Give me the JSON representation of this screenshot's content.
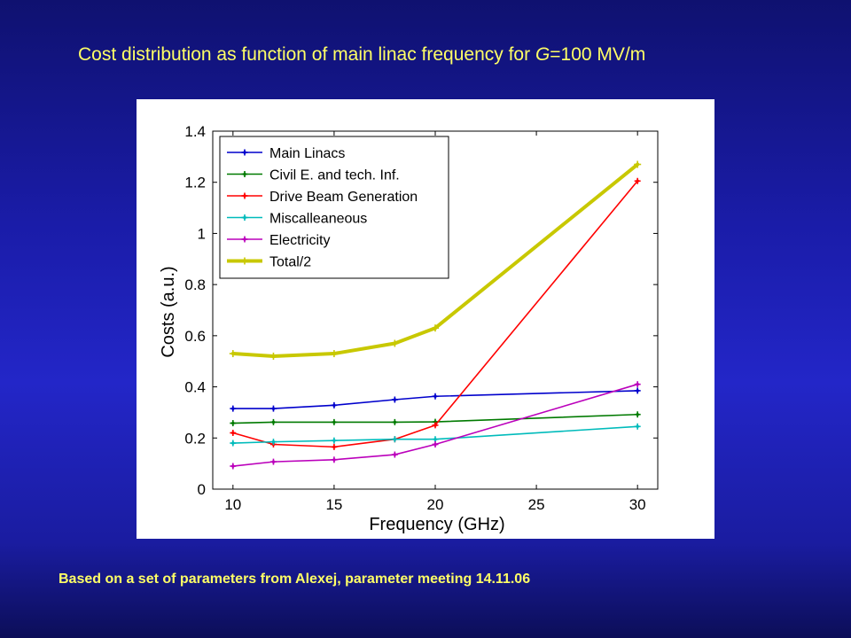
{
  "slide": {
    "title_prefix": "Cost distribution as function of main linac frequency for ",
    "title_var": "G",
    "title_suffix": "=100 MV/m",
    "footnote": "Based on a set of parameters from Alexej, parameter meeting 14.11.06"
  },
  "chart_data": {
    "type": "line",
    "title": "",
    "xlabel": "Frequency (GHz)",
    "ylabel": "Costs (a.u.)",
    "xlim": [
      9,
      31
    ],
    "ylim": [
      0,
      1.4
    ],
    "xticks": [
      10,
      15,
      20,
      25,
      30
    ],
    "yticks": [
      0,
      0.2,
      0.4,
      0.6,
      0.8,
      1,
      1.2,
      1.4
    ],
    "grid": false,
    "legend_position": "top-left",
    "x": [
      10,
      12,
      15,
      18,
      20,
      30
    ],
    "series": [
      {
        "name": "Main Linacs",
        "color": "#0000cc",
        "values": [
          0.315,
          0.315,
          0.328,
          0.35,
          0.363,
          0.385
        ]
      },
      {
        "name": "Civil E. and tech. Inf.",
        "color": "#007a00",
        "values": [
          0.258,
          0.262,
          0.262,
          0.262,
          0.263,
          0.292
        ]
      },
      {
        "name": "Drive Beam Generation",
        "color": "#ff0000",
        "values": [
          0.22,
          0.175,
          0.165,
          0.195,
          0.25,
          1.205
        ]
      },
      {
        "name": "Miscalleaneous",
        "color": "#00bbbb",
        "values": [
          0.18,
          0.185,
          0.19,
          0.195,
          0.195,
          0.245
        ]
      },
      {
        "name": "Electricity",
        "color": "#bb00bb",
        "values": [
          0.09,
          0.107,
          0.115,
          0.135,
          0.175,
          0.41
        ]
      },
      {
        "name": "Total/2",
        "color": "#c8c800",
        "values": [
          0.53,
          0.52,
          0.53,
          0.57,
          0.63,
          1.27
        ],
        "thick": true
      }
    ]
  }
}
